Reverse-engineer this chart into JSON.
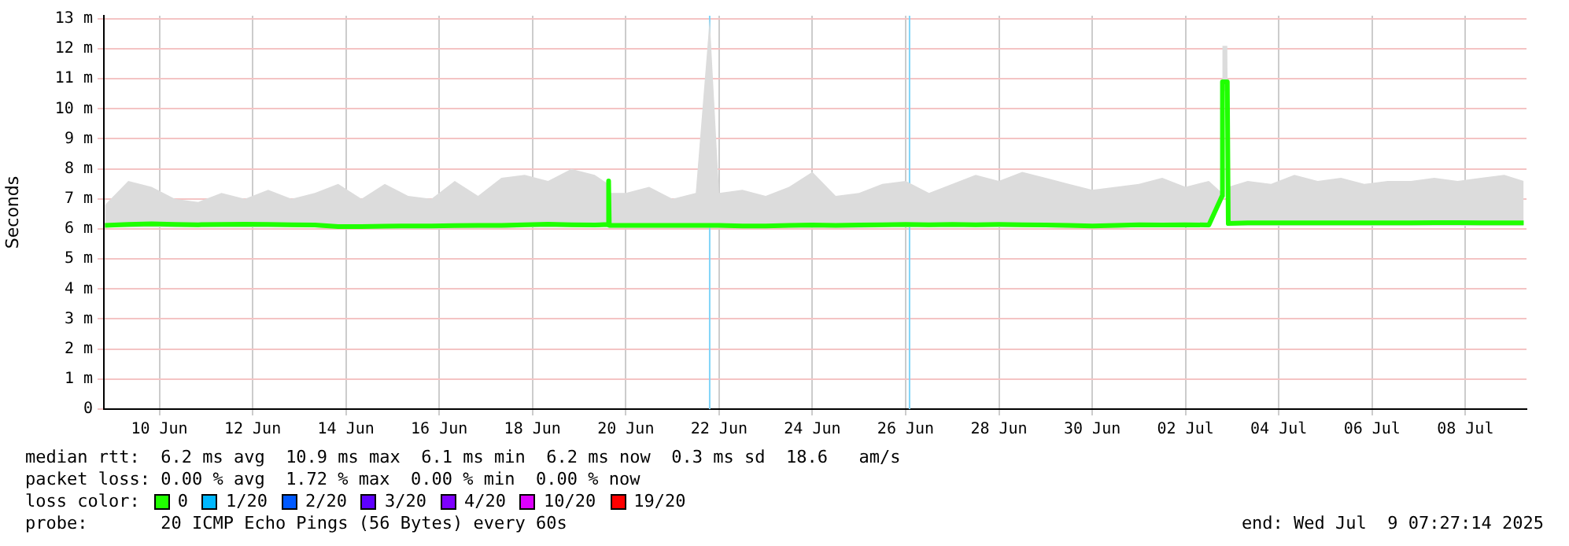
{
  "chart_data": {
    "type": "line",
    "ylabel": "Seconds",
    "legend_title": "loss color:",
    "legend": "bottom",
    "grid": true,
    "marker": "none",
    "line_style": "solid",
    "xlim": [
      "2025-06-08T19:27",
      "2025-07-09T07:27"
    ],
    "xticks": [
      {
        "value": "2025-06-10",
        "label": "10 Jun"
      },
      {
        "value": "2025-06-12",
        "label": "12 Jun"
      },
      {
        "value": "2025-06-14",
        "label": "14 Jun"
      },
      {
        "value": "2025-06-16",
        "label": "16 Jun"
      },
      {
        "value": "2025-06-18",
        "label": "18 Jun"
      },
      {
        "value": "2025-06-20",
        "label": "20 Jun"
      },
      {
        "value": "2025-06-22",
        "label": "22 Jun"
      },
      {
        "value": "2025-06-24",
        "label": "24 Jun"
      },
      {
        "value": "2025-06-26",
        "label": "26 Jun"
      },
      {
        "value": "2025-06-28",
        "label": "28 Jun"
      },
      {
        "value": "2025-06-30",
        "label": "30 Jun"
      },
      {
        "value": "2025-07-02",
        "label": "02 Jul"
      },
      {
        "value": "2025-07-04",
        "label": "04 Jul"
      },
      {
        "value": "2025-07-06",
        "label": "06 Jul"
      },
      {
        "value": "2025-07-08",
        "label": "08 Jul"
      }
    ],
    "ylim": [
      0,
      13.1
    ],
    "yticks": [
      0,
      {
        "value": 1,
        "label": "1 m"
      },
      {
        "value": 2,
        "label": "2 m"
      },
      {
        "value": 3,
        "label": "3 m"
      },
      {
        "value": 4,
        "label": "4 m"
      },
      {
        "value": 5,
        "label": "5 m"
      },
      {
        "value": 6,
        "label": "6 m"
      },
      {
        "value": 7,
        "label": "7 m"
      },
      {
        "value": 8,
        "label": "8 m"
      },
      {
        "value": 9,
        "label": "9 m"
      },
      {
        "value": 10,
        "label": "10 m"
      },
      {
        "value": 11,
        "label": "11 m"
      },
      {
        "value": 12,
        "label": "12 m"
      },
      {
        "value": 13,
        "label": "13 m"
      }
    ],
    "x": [
      "2025-06-08T20:00",
      "2025-06-09T08:00",
      "2025-06-09T20:00",
      "2025-06-10T08:00",
      "2025-06-10T20:00",
      "2025-06-11T08:00",
      "2025-06-11T20:00",
      "2025-06-12T08:00",
      "2025-06-12T20:00",
      "2025-06-13T08:00",
      "2025-06-13T20:00",
      "2025-06-14T08:00",
      "2025-06-14T20:00",
      "2025-06-15T08:00",
      "2025-06-15T20:00",
      "2025-06-16T08:00",
      "2025-06-16T20:00",
      "2025-06-17T08:00",
      "2025-06-17T20:00",
      "2025-06-18T08:00",
      "2025-06-18T20:00",
      "2025-06-19T08:00",
      "2025-06-19T15:00",
      "2025-06-19T15:10",
      "2025-06-19T15:30",
      "2025-06-20T00:00",
      "2025-06-20T12:00",
      "2025-06-21T00:00",
      "2025-06-21T12:00",
      "2025-06-21T19:10",
      "2025-06-22T00:00",
      "2025-06-22T12:00",
      "2025-06-23T00:00",
      "2025-06-23T12:00",
      "2025-06-24T00:00",
      "2025-06-24T12:00",
      "2025-06-25T00:00",
      "2025-06-25T12:00",
      "2025-06-26T00:00",
      "2025-06-26T12:00",
      "2025-06-27T00:00",
      "2025-06-27T12:00",
      "2025-06-28T00:00",
      "2025-06-28T12:00",
      "2025-06-29T00:00",
      "2025-06-29T12:00",
      "2025-06-30T00:00",
      "2025-06-30T12:00",
      "2025-07-01T00:00",
      "2025-07-01T12:00",
      "2025-07-02T00:00",
      "2025-07-02T12:00",
      "2025-07-02T18:50",
      "2025-07-02T19:00",
      "2025-07-02T21:30",
      "2025-07-02T22:00",
      "2025-07-03T08:00",
      "2025-07-03T20:00",
      "2025-07-04T08:00",
      "2025-07-04T20:00",
      "2025-07-05T08:00",
      "2025-07-05T20:00",
      "2025-07-06T08:00",
      "2025-07-06T20:00",
      "2025-07-07T08:00",
      "2025-07-07T20:00",
      "2025-07-08T08:00",
      "2025-07-08T20:00",
      "2025-07-09T06:00"
    ],
    "series": [
      {
        "name": "0",
        "color": "#20ff00",
        "values": [
          6.12,
          6.15,
          6.17,
          6.15,
          6.14,
          6.15,
          6.16,
          6.15,
          6.14,
          6.13,
          6.08,
          6.08,
          6.09,
          6.1,
          6.1,
          6.11,
          6.12,
          6.12,
          6.14,
          6.16,
          6.14,
          6.13,
          6.15,
          7.6,
          6.12,
          6.12,
          6.12,
          6.12,
          6.12,
          6.12,
          6.12,
          6.1,
          6.1,
          6.12,
          6.13,
          6.12,
          6.13,
          6.14,
          6.15,
          6.14,
          6.15,
          6.14,
          6.15,
          6.14,
          6.13,
          6.12,
          6.1,
          6.12,
          6.14,
          6.13,
          6.14,
          6.13,
          7.1,
          10.9,
          10.9,
          6.18,
          6.2,
          6.2,
          6.2,
          6.2,
          6.2,
          6.2,
          6.2,
          6.2,
          6.21,
          6.21,
          6.2,
          6.2,
          6.2
        ],
        "lower": [
          6.05,
          6.05,
          6.05,
          6.05,
          6.05,
          6.05,
          6.05,
          6.05,
          6.05,
          6.05,
          6.0,
          6.0,
          6.0,
          6.0,
          6.0,
          6.02,
          6.02,
          6.02,
          6.05,
          6.05,
          6.05,
          6.05,
          6.05,
          7.4,
          6.03,
          6.03,
          6.03,
          6.03,
          6.03,
          6.03,
          6.03,
          6.02,
          6.02,
          6.03,
          6.03,
          6.03,
          6.03,
          6.05,
          6.05,
          6.05,
          6.05,
          6.05,
          6.05,
          6.05,
          6.05,
          6.03,
          6.02,
          6.03,
          6.05,
          6.05,
          6.05,
          6.05,
          6.9,
          10.6,
          10.6,
          6.1,
          6.1,
          6.1,
          6.1,
          6.1,
          6.1,
          6.1,
          6.1,
          6.1,
          6.1,
          6.1,
          6.1,
          6.1,
          6.1
        ],
        "upper": [
          6.8,
          7.6,
          7.4,
          7.0,
          6.9,
          7.2,
          7.0,
          7.3,
          7.0,
          7.2,
          7.5,
          7.0,
          7.5,
          7.1,
          7.0,
          7.6,
          7.1,
          7.7,
          7.8,
          7.6,
          8.0,
          7.8,
          7.5,
          7.65,
          7.2,
          7.2,
          7.4,
          7.0,
          7.2,
          13.0,
          7.2,
          7.3,
          7.1,
          7.4,
          7.9,
          7.1,
          7.2,
          7.5,
          7.6,
          7.2,
          7.5,
          7.8,
          7.6,
          7.9,
          7.7,
          7.5,
          7.3,
          7.4,
          7.5,
          7.7,
          7.4,
          7.6,
          7.2,
          12.1,
          12.1,
          7.4,
          7.6,
          7.5,
          7.8,
          7.6,
          7.7,
          7.5,
          7.6,
          7.6,
          7.7,
          7.6,
          7.7,
          7.8,
          7.6
        ]
      },
      {
        "name": "1/20",
        "color": "#00b8ff",
        "values": [
          null,
          null,
          null,
          null,
          null,
          null,
          null,
          null,
          null,
          null,
          null,
          null,
          null,
          null,
          null,
          null,
          null,
          null,
          null,
          null,
          null,
          null,
          null,
          null,
          null,
          null,
          null,
          null,
          null,
          null,
          null,
          null,
          null,
          null,
          null,
          null,
          null,
          null,
          null,
          null,
          null,
          null,
          null,
          null,
          null,
          null,
          null,
          null,
          null,
          null,
          null,
          null,
          null,
          null,
          null,
          null,
          null,
          null,
          null,
          null,
          null,
          null,
          null,
          null,
          null,
          null,
          null,
          null,
          null
        ]
      },
      {
        "name": "2/20",
        "color": "#0059ff",
        "values": [
          null,
          null,
          null,
          null,
          null,
          null,
          null,
          null,
          null,
          null,
          null,
          null,
          null,
          null,
          null,
          null,
          null,
          null,
          null,
          null,
          null,
          null,
          null,
          null,
          null,
          null,
          null,
          null,
          null,
          null,
          null,
          null,
          null,
          null,
          null,
          null,
          null,
          null,
          null,
          null,
          null,
          null,
          null,
          null,
          null,
          null,
          null,
          null,
          null,
          null,
          null,
          null,
          null,
          null,
          null,
          null,
          null,
          null,
          null,
          null,
          null,
          null,
          null,
          null,
          null,
          null,
          null,
          null,
          null
        ]
      },
      {
        "name": "3/20",
        "color": "#5e00ff",
        "values": [
          null,
          null,
          null,
          null,
          null,
          null,
          null,
          null,
          null,
          null,
          null,
          null,
          null,
          null,
          null,
          null,
          null,
          null,
          null,
          null,
          null,
          null,
          null,
          null,
          null,
          null,
          null,
          null,
          null,
          null,
          null,
          null,
          null,
          null,
          null,
          null,
          null,
          null,
          null,
          null,
          null,
          null,
          null,
          null,
          null,
          null,
          null,
          null,
          null,
          null,
          null,
          null,
          null,
          null,
          null,
          null,
          null,
          null,
          null,
          null,
          null,
          null,
          null,
          null,
          null,
          null,
          null,
          null,
          null
        ]
      },
      {
        "name": "4/20",
        "color": "#7e00ff",
        "values": [
          null,
          null,
          null,
          null,
          null,
          null,
          null,
          null,
          null,
          null,
          null,
          null,
          null,
          null,
          null,
          null,
          null,
          null,
          null,
          null,
          null,
          null,
          null,
          null,
          null,
          null,
          null,
          null,
          null,
          null,
          null,
          null,
          null,
          null,
          null,
          null,
          null,
          null,
          null,
          null,
          null,
          null,
          null,
          null,
          null,
          null,
          null,
          null,
          null,
          null,
          null,
          null,
          null,
          null,
          null,
          null,
          null,
          null,
          null,
          null,
          null,
          null,
          null,
          null,
          null,
          null,
          null,
          null,
          null
        ]
      },
      {
        "name": "10/20",
        "color": "#dd00ff",
        "values": [
          null,
          null,
          null,
          null,
          null,
          null,
          null,
          null,
          null,
          null,
          null,
          null,
          null,
          null,
          null,
          null,
          null,
          null,
          null,
          null,
          null,
          null,
          null,
          null,
          null,
          null,
          null,
          null,
          null,
          null,
          null,
          null,
          null,
          null,
          null,
          null,
          null,
          null,
          null,
          null,
          null,
          null,
          null,
          null,
          null,
          null,
          null,
          null,
          null,
          null,
          null,
          null,
          null,
          null,
          null,
          null,
          null,
          null,
          null,
          null,
          null,
          null,
          null,
          null,
          null,
          null,
          null,
          null,
          null
        ]
      },
      {
        "name": "19/20",
        "color": "#ff0000",
        "values": [
          null,
          null,
          null,
          null,
          null,
          null,
          null,
          null,
          null,
          null,
          null,
          null,
          null,
          null,
          null,
          null,
          null,
          null,
          null,
          null,
          null,
          null,
          null,
          null,
          null,
          null,
          null,
          null,
          null,
          null,
          null,
          null,
          null,
          null,
          null,
          null,
          null,
          null,
          null,
          null,
          null,
          null,
          null,
          null,
          null,
          null,
          null,
          null,
          null,
          null,
          null,
          null,
          null,
          null,
          null,
          null,
          null,
          null,
          null,
          null,
          null,
          null,
          null,
          null,
          null,
          null,
          null,
          null,
          null
        ]
      }
    ],
    "ref_lines": [
      {
        "axis": "x",
        "value": "2025-06-21T19:10",
        "color": "#80d4f8"
      },
      {
        "axis": "x",
        "value": "2025-06-26T02:00",
        "color": "#80d4f8"
      }
    ],
    "annotations": [
      "median rtt:  6.2 ms avg  10.9 ms max  6.1 ms min  6.2 ms now  0.3 ms sd  18.6   am/s",
      "packet loss: 0.00 % avg  1.72 % max  0.00 % min  0.00 % now",
      "probe:       20 ICMP Echo Pings (56 Bytes) every 60s",
      "end: Wed Jul  9 07:27:14 2025"
    ]
  }
}
